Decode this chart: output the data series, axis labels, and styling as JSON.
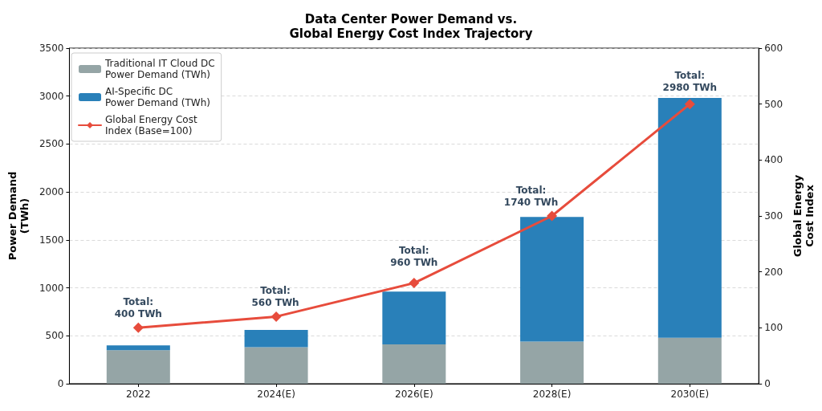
{
  "chart_data": {
    "type": "bar",
    "title": "Data Center Power Demand vs.\nGlobal Energy Cost Index Trajectory",
    "ylabel": "Power Demand\n(TWh)",
    "y2label": "Global Energy\nCost Index",
    "categories": [
      "2022",
      "2024(E)",
      "2026(E)",
      "2028(E)",
      "2030(E)"
    ],
    "series": [
      {
        "name": "Traditional IT Cloud DC\nPower Demand (TWh)",
        "color": "#95a5a6",
        "values": [
          350,
          380,
          410,
          440,
          480
        ]
      },
      {
        "name": "AI-Specific DC\nPower Demand (TWh)",
        "color": "#2980b9",
        "values": [
          50,
          180,
          550,
          1300,
          2500
        ]
      },
      {
        "name": "Global Energy Cost\nIndex (Base=100)",
        "color": "#e74c3c",
        "type": "line",
        "axis": "y2",
        "values": [
          100,
          120,
          180,
          300,
          500
        ]
      }
    ],
    "stacked": true,
    "totals": [
      "Total:\n400 TWh",
      "Total:\n560 TWh",
      "Total:\n960 TWh",
      "Total:\n1740 TWh",
      "Total:\n2980 TWh"
    ],
    "ylim": [
      0,
      3500
    ],
    "yticks": [
      0,
      500,
      1000,
      1500,
      2000,
      2500,
      3000,
      3500
    ],
    "y2lim": [
      0,
      600
    ],
    "y2ticks": [
      0,
      100,
      200,
      300,
      400,
      500,
      600
    ],
    "grid": "y",
    "legend": "top left",
    "marker": "diamond"
  }
}
